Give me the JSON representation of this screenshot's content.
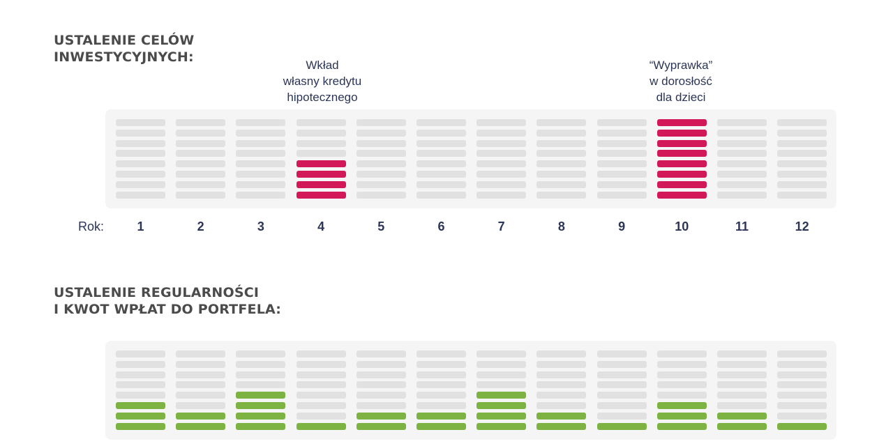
{
  "goals_section": {
    "title_lines": [
      "USTALENIE CELÓW",
      "INWESTYCYJNYCH:"
    ],
    "levels": 8,
    "filled": [
      0,
      0,
      0,
      4,
      0,
      0,
      0,
      0,
      0,
      8,
      0,
      0
    ],
    "annotations": [
      {
        "year": "4",
        "lines": [
          "Wkład",
          "własny kredytu",
          "hipotecznego"
        ]
      },
      {
        "year": "10",
        "lines": [
          "“Wyprawka”",
          "w dorosłość",
          "dla dzieci"
        ]
      }
    ]
  },
  "year_axis": {
    "label": "Rok:",
    "years": [
      "1",
      "2",
      "3",
      "4",
      "5",
      "6",
      "7",
      "8",
      "9",
      "10",
      "11",
      "12"
    ]
  },
  "contributions_section": {
    "title_lines": [
      "USTALENIE REGULARNOŚCI",
      "I KWOT WPŁAT DO PORTFELA:"
    ],
    "levels": 8,
    "filled": [
      3,
      2,
      4,
      1,
      2,
      2,
      4,
      2,
      1,
      3,
      2,
      1
    ]
  },
  "colors": {
    "goal": "#d3185a",
    "contribution": "#7cb342",
    "empty": "#e1e1e1",
    "panel": "#f5f5f5",
    "text_dark": "#2c3557",
    "title": "#4b4b4b"
  }
}
